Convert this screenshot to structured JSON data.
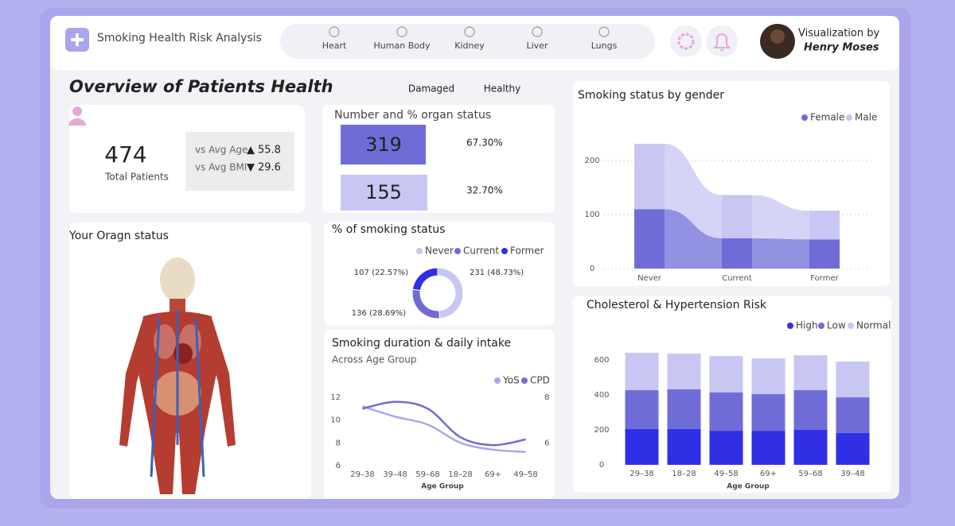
{
  "header": {
    "title": "Smoking Health Risk Analysis",
    "nav": [
      "Heart",
      "Human Body",
      "Kidney",
      "Liver",
      "Lungs"
    ],
    "credit": "Visualization by",
    "author": "Henry Moses"
  },
  "overview": {
    "title": "Overview of Patients Health",
    "tabs": [
      "Damaged",
      "Healthy"
    ]
  },
  "kpi": {
    "value": 474,
    "label": "Total Patients",
    "comparisons": [
      {
        "label": "vs Avg Age",
        "arrow": "▲",
        "value": 55.8
      },
      {
        "label": "vs Avg BMI",
        "arrow": "▼",
        "value": 29.6
      }
    ]
  },
  "organ_status": {
    "title": "Number and % organ status",
    "rows": [
      {
        "count": 319,
        "percent": "67.30%"
      },
      {
        "count": 155,
        "percent": "32.70%"
      }
    ]
  },
  "organ_panel": {
    "title": "Your Oragn status"
  },
  "chart_data": [
    {
      "type": "bar",
      "stacked": true,
      "title": "Smoking status by gender",
      "categories": [
        "Never",
        "Current",
        "Former"
      ],
      "series": [
        {
          "name": "Female",
          "color": "#6f6cd8",
          "values": [
            110,
            56,
            54
          ]
        },
        {
          "name": "Male",
          "color": "#c8c6f3",
          "values": [
            121,
            80,
            53
          ]
        }
      ],
      "ylim": [
        0,
        250
      ],
      "yticks": [
        0,
        100,
        200
      ],
      "grid": true
    },
    {
      "type": "pie",
      "donut": true,
      "title": "% of smoking status",
      "categories": [
        "Never",
        "Current",
        "Former"
      ],
      "values": [
        231,
        136,
        107
      ],
      "value_labels": [
        "231 (48.73%)",
        "136 (28.69%)",
        "107 (22.57%)"
      ],
      "colors": [
        "#c8c6f3",
        "#6f6cd8",
        "#2f2fe6"
      ]
    },
    {
      "type": "line",
      "title": "Smoking duration & daily intake",
      "subtitle": "Across Age Group",
      "xlabel": "Age Group",
      "categories": [
        "29–38",
        "39–48",
        "59–68",
        "18–28",
        "69+",
        "49–58"
      ],
      "series": [
        {
          "name": "YoS",
          "color": "#a9a6ec",
          "values": [
            11.2,
            10.3,
            9.6,
            8,
            7.4,
            7.2
          ]
        },
        {
          "name": "CPD",
          "color": "#6f6cd8",
          "axis": "y2",
          "values": [
            7.5,
            7.8,
            7.5,
            6.25,
            5.9,
            6.15
          ]
        }
      ],
      "ylim": [
        6,
        12
      ],
      "yticks": [
        6,
        8,
        10,
        12
      ],
      "y2lim": [
        5,
        8
      ],
      "y2ticks": [
        6,
        8
      ]
    },
    {
      "type": "bar",
      "stacked": true,
      "title": "Cholesterol & Hypertension Risk",
      "xlabel": "Age Group",
      "categories": [
        "29–38",
        "18–28",
        "49–58",
        "69+",
        "59–68",
        "39–48"
      ],
      "series": [
        {
          "name": "High",
          "color": "#2f2fe6",
          "values": [
            205,
            205,
            195,
            195,
            200,
            182
          ]
        },
        {
          "name": "Low",
          "color": "#6f6cd8",
          "values": [
            222,
            227,
            219,
            210,
            227,
            204
          ]
        },
        {
          "name": "Normal",
          "color": "#c8c6f3",
          "values": [
            214,
            204,
            209,
            204,
            200,
            205
          ]
        }
      ],
      "ylim": [
        0,
        650
      ],
      "yticks": [
        0,
        200,
        400,
        600
      ],
      "grid": false
    }
  ]
}
